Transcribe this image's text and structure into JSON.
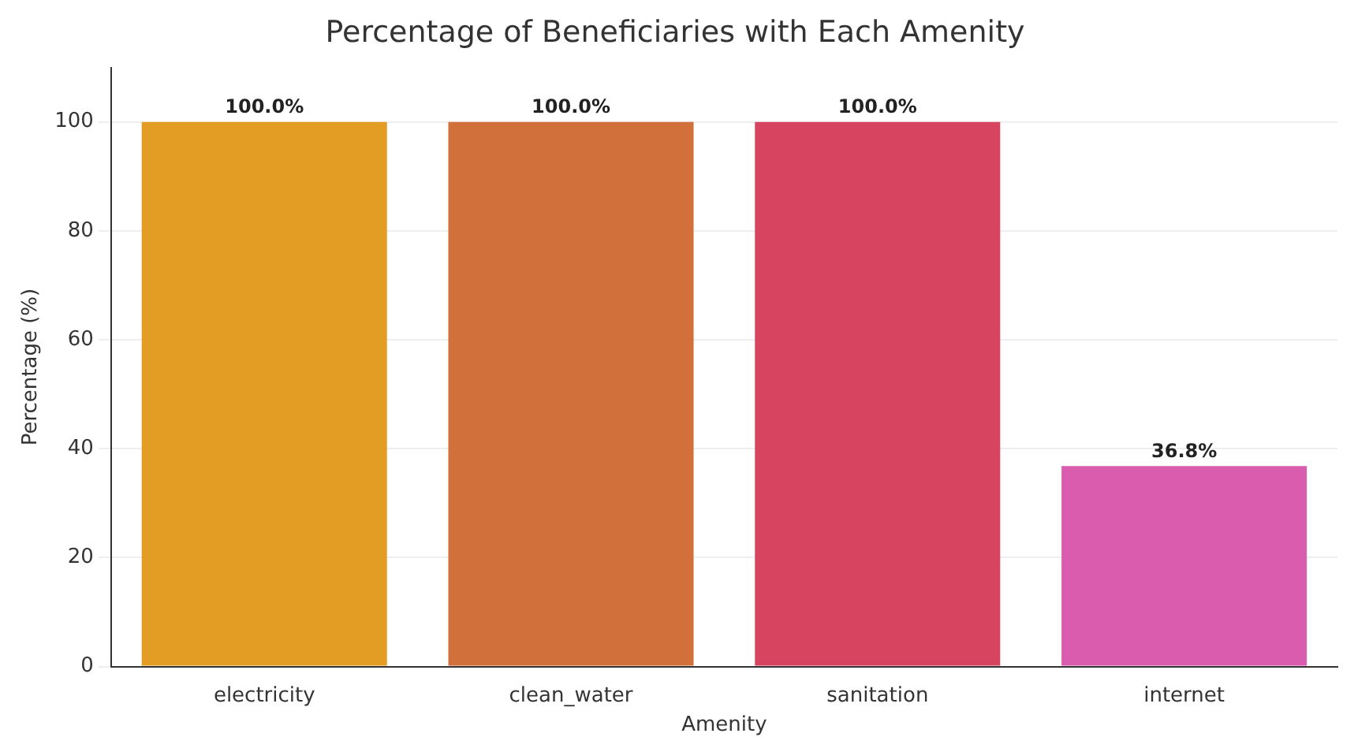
{
  "chart_data": {
    "type": "bar",
    "title": "Percentage of Beneficiaries with Each Amenity",
    "xlabel": "Amenity",
    "ylabel": "Percentage (%)",
    "categories": [
      "electricity",
      "clean_water",
      "sanitation",
      "internet"
    ],
    "values": [
      100,
      100,
      100,
      36.8
    ],
    "colors": [
      "#e39c24",
      "#d2703c",
      "#d64460",
      "#d95cae"
    ],
    "value_labels": [
      "100.0%",
      "100.0%",
      "100.0%",
      "36.8%"
    ],
    "ylim": [
      0,
      110
    ],
    "yticks": [
      0,
      20,
      40,
      60,
      80,
      100
    ],
    "grid": "y"
  }
}
